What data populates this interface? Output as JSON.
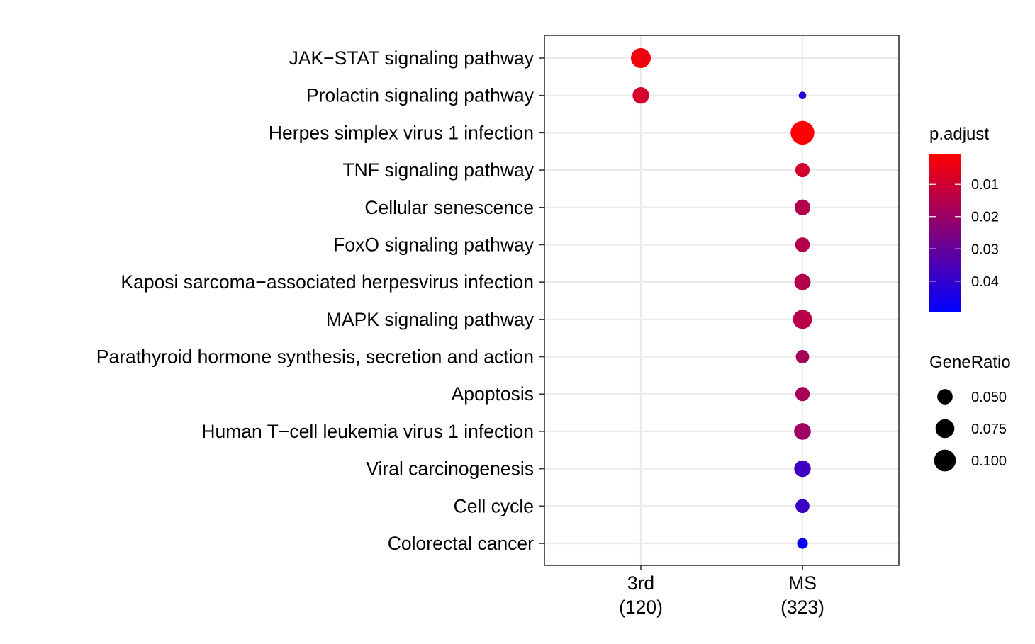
{
  "chart_data": {
    "type": "scatter",
    "title": "",
    "xlabel": "",
    "ylabel": "",
    "x_categories": [
      {
        "name": "3rd",
        "count": "(120)"
      },
      {
        "name": "MS",
        "count": "(323)"
      }
    ],
    "y_categories": [
      "JAK−STAT signaling pathway",
      "Prolactin signaling pathway",
      "Herpes simplex virus 1 infection",
      "TNF signaling pathway",
      "Cellular senescence",
      "FoxO signaling pathway",
      "Kaposi sarcoma−associated herpesvirus infection",
      "MAPK signaling pathway",
      "Parathyroid hormone synthesis, secretion and action",
      "Apoptosis",
      "Human T−cell leukemia virus 1 infection",
      "Viral carcinogenesis",
      "Cell cycle",
      "Colorectal cancer"
    ],
    "points": [
      {
        "x": "3rd",
        "y": "JAK−STAT signaling pathway",
        "gene_ratio": 0.083,
        "p_adjust": 0.0035
      },
      {
        "x": "3rd",
        "y": "Prolactin signaling pathway",
        "gene_ratio": 0.058,
        "p_adjust": 0.009
      },
      {
        "x": "MS",
        "y": "Prolactin signaling pathway",
        "gene_ratio": 0.012,
        "p_adjust": 0.041
      },
      {
        "x": "MS",
        "y": "Herpes simplex virus 1 infection",
        "gene_ratio": 0.118,
        "p_adjust": 0.0012
      },
      {
        "x": "MS",
        "y": "TNF signaling pathway",
        "gene_ratio": 0.043,
        "p_adjust": 0.0095
      },
      {
        "x": "MS",
        "y": "Cellular senescence",
        "gene_ratio": 0.052,
        "p_adjust": 0.0155
      },
      {
        "x": "MS",
        "y": "FoxO signaling pathway",
        "gene_ratio": 0.045,
        "p_adjust": 0.0155
      },
      {
        "x": "MS",
        "y": "Kaposi sarcoma−associated herpesvirus infection",
        "gene_ratio": 0.056,
        "p_adjust": 0.0155
      },
      {
        "x": "MS",
        "y": "MAPK signaling pathway",
        "gene_ratio": 0.077,
        "p_adjust": 0.0145
      },
      {
        "x": "MS",
        "y": "Parathyroid hormone synthesis, secretion and action",
        "gene_ratio": 0.038,
        "p_adjust": 0.0175
      },
      {
        "x": "MS",
        "y": "Apoptosis",
        "gene_ratio": 0.043,
        "p_adjust": 0.0175
      },
      {
        "x": "MS",
        "y": "Human T−cell leukemia virus 1 infection",
        "gene_ratio": 0.059,
        "p_adjust": 0.0195
      },
      {
        "x": "MS",
        "y": "Viral carcinogenesis",
        "gene_ratio": 0.058,
        "p_adjust": 0.0375
      },
      {
        "x": "MS",
        "y": "Cell cycle",
        "gene_ratio": 0.041,
        "p_adjust": 0.038
      },
      {
        "x": "MS",
        "y": "Colorectal cancer",
        "gene_ratio": 0.024,
        "p_adjust": 0.0485
      }
    ],
    "grid": true,
    "color_legend": {
      "title": "p.adjust",
      "ticks": [
        0.01,
        0.02,
        0.03,
        0.04
      ],
      "tick_labels": [
        "0.01",
        "0.02",
        "0.03",
        "0.04"
      ],
      "range": [
        0.001,
        0.049
      ],
      "low_color": "#ff0000",
      "high_color": "#0000ff"
    },
    "size_legend": {
      "title": "GeneRatio",
      "values": [
        0.05,
        0.075,
        0.1
      ],
      "labels": [
        "0.050",
        "0.075",
        "0.100"
      ]
    },
    "legend_position": "right",
    "colors": {
      "panel_border": "#333333",
      "grid": "#ebebeb",
      "text": "#000000",
      "legend_key": "#000000"
    }
  }
}
